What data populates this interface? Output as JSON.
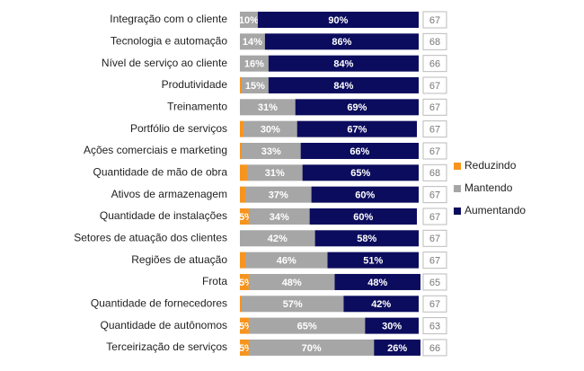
{
  "chart_data": {
    "type": "stacked-bar",
    "categories": [
      "Integração com o cliente",
      "Tecnologia e automação",
      "Nível de serviço ao cliente",
      "Produtividade",
      "Treinamento",
      "Portfólio de serviços",
      "Ações comerciais e marketing",
      "Quantidade de mão de obra",
      "Ativos de armazenagem",
      "Quantidade de instalações",
      "Setores de atuação dos clientes",
      "Regiões de atuação",
      "Frota",
      "Quantidade de fornecedores",
      "Quantidade de autônomos",
      "Terceirização de serviços"
    ],
    "xlim": [
      0,
      100
    ],
    "series": [
      {
        "name": "Reduzindo",
        "color": "#f7941d",
        "values": [
          0,
          0,
          0,
          1,
          0,
          2,
          1,
          4,
          3,
          5,
          0,
          3,
          5,
          1,
          5,
          5
        ],
        "value_labels": [
          null,
          null,
          null,
          null,
          null,
          null,
          null,
          null,
          null,
          "5%",
          null,
          null,
          "5%",
          null,
          "5%",
          "5%"
        ]
      },
      {
        "name": "Mantendo",
        "color": "#a6a6a6",
        "values": [
          10,
          14,
          16,
          15,
          31,
          30,
          33,
          31,
          37,
          34,
          42,
          46,
          48,
          57,
          65,
          70
        ],
        "value_labels": [
          "10%",
          "14%",
          "16%",
          "15%",
          "31%",
          "30%",
          "33%",
          "31%",
          "37%",
          "34%",
          "42%",
          "46%",
          "48%",
          "57%",
          "65%",
          "70%"
        ]
      },
      {
        "name": "Aumentando",
        "color": "#0c0c5e",
        "values": [
          90,
          86,
          84,
          84,
          69,
          67,
          66,
          65,
          60,
          60,
          58,
          51,
          48,
          42,
          30,
          26
        ],
        "value_labels": [
          "90%",
          "86%",
          "84%",
          "84%",
          "69%",
          "67%",
          "66%",
          "65%",
          "60%",
          "60%",
          "58%",
          "51%",
          "48%",
          "42%",
          "30%",
          "26%"
        ]
      }
    ],
    "counts": [
      67,
      68,
      66,
      67,
      67,
      67,
      67,
      68,
      67,
      67,
      67,
      67,
      65,
      67,
      63,
      66
    ]
  }
}
